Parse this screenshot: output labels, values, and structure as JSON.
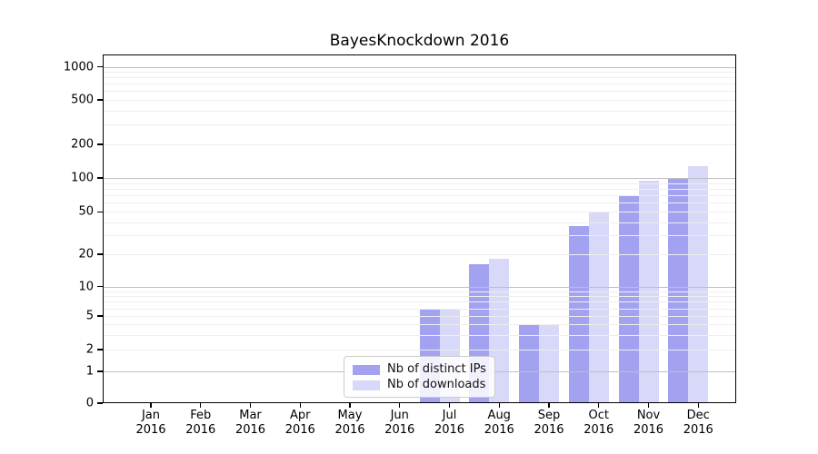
{
  "chart_data": {
    "type": "bar",
    "title": "BayesKnockdown 2016",
    "x_year": "2016",
    "categories": [
      "Jan",
      "Feb",
      "Mar",
      "Apr",
      "May",
      "Jun",
      "Jul",
      "Aug",
      "Sep",
      "Oct",
      "Nov",
      "Dec"
    ],
    "series": [
      {
        "name": "Nb of distinct IPs",
        "color": "#a2a2f1",
        "values": [
          0,
          0,
          0,
          0,
          0,
          0,
          6,
          16,
          4,
          37,
          70,
          100
        ]
      },
      {
        "name": "Nb of downloads",
        "color": "#d8d8f8",
        "values": [
          0,
          0,
          0,
          0,
          0,
          0,
          6,
          18,
          4,
          50,
          95,
          127
        ]
      }
    ],
    "yscale": "symlog",
    "yticks": [
      0,
      1,
      2,
      5,
      10,
      20,
      50,
      100,
      200,
      500,
      1000
    ],
    "ylim": [
      0,
      1300
    ],
    "grid": "horizontal major at powers of 10, minor at 2-9 per decade, drawn above bars",
    "legend_position": "lower center inside plot"
  }
}
